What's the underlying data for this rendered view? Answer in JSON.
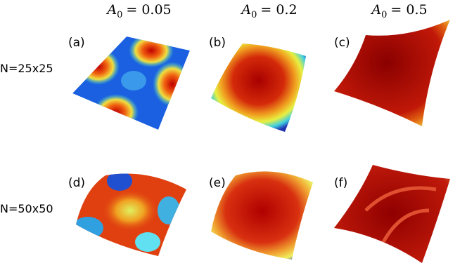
{
  "columns": [
    {
      "symbol": "A",
      "subscript": "0",
      "value": "= 0.05"
    },
    {
      "symbol": "A",
      "subscript": "0",
      "value": "= 0.2"
    },
    {
      "symbol": "A",
      "subscript": "0",
      "value": "= 0.5"
    }
  ],
  "rows": [
    "N=25x25",
    "N=50x50"
  ],
  "panels": [
    "(a)",
    "(b)",
    "(c)",
    "(d)",
    "(e)",
    "(f)"
  ]
}
